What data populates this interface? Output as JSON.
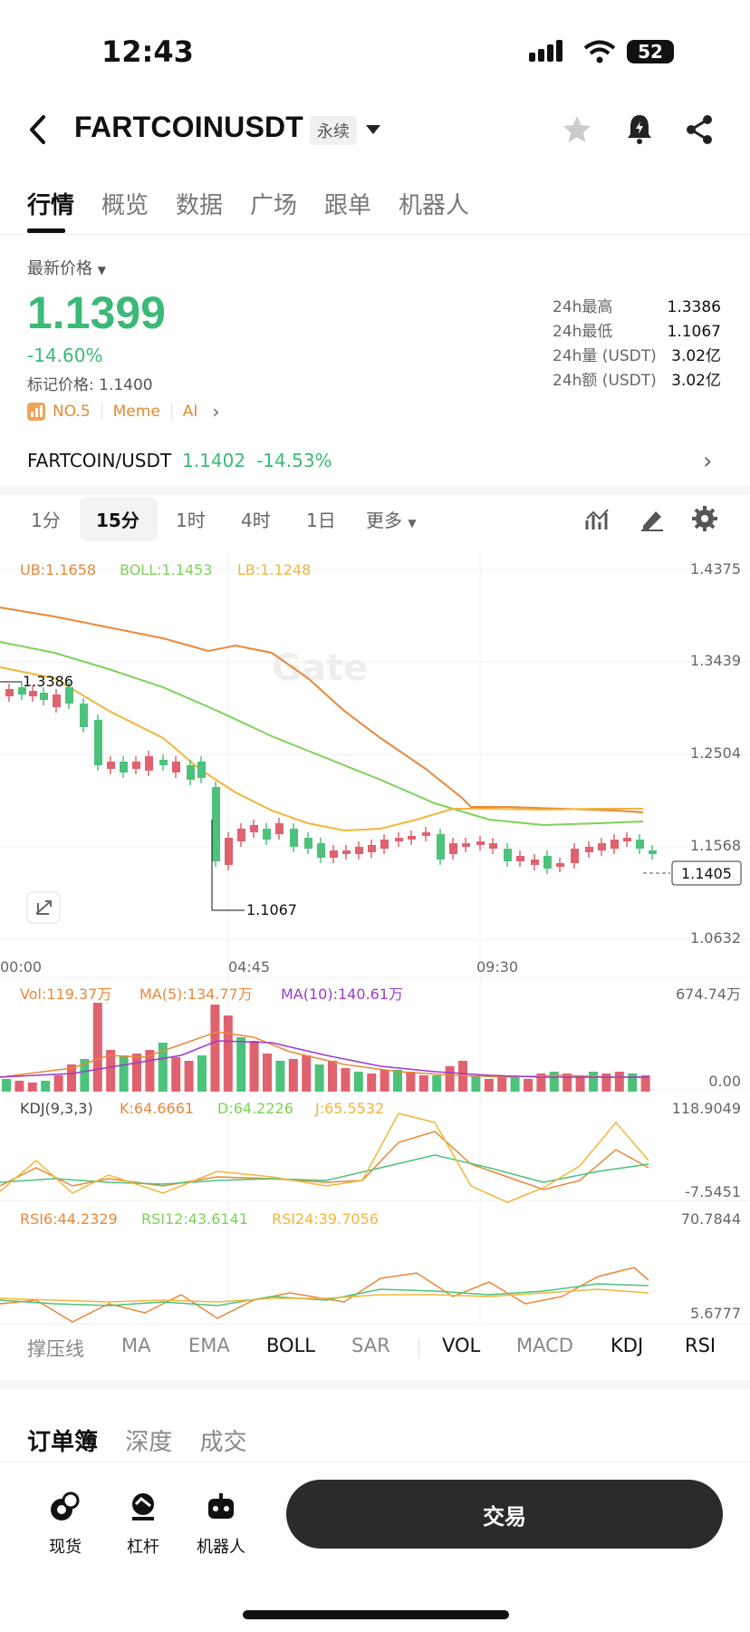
{
  "status": {
    "time": "12:43",
    "battery": "52"
  },
  "header": {
    "symbol": "FARTCOINUSDT",
    "type_tag": "永续"
  },
  "tabs": [
    "行情",
    "概览",
    "数据",
    "广场",
    "跟单",
    "机器人"
  ],
  "price": {
    "label": "最新价格",
    "last": "1.1399",
    "change": "-14.60%",
    "mark": "标记价格: 1.1400",
    "rank": "NO.5",
    "tags": [
      "Meme",
      "AI"
    ]
  },
  "stats": [
    {
      "k": "24h最高",
      "v": "1.3386"
    },
    {
      "k": "24h最低",
      "v": "1.1067"
    },
    {
      "k": "24h量 (USDT)",
      "v": "3.02亿"
    },
    {
      "k": "24h额 (USDT)",
      "v": "3.02亿"
    }
  ],
  "pair": {
    "name": "FARTCOIN/USDT",
    "price": "1.1402",
    "change": "-14.53%"
  },
  "intervals": {
    "items": [
      "1分",
      "15分",
      "1时",
      "4时",
      "1日"
    ],
    "more": "更多",
    "active": "15分"
  },
  "chart": {
    "boll_legend": {
      "ub": "UB:1.1658",
      "boll": "BOLL:1.1453",
      "lb": "LB:1.1248"
    },
    "price_axis": [
      "1.4375",
      "1.3439",
      "1.2504",
      "1.1568",
      "1.0632"
    ],
    "high_label": "1.3386",
    "low_label": "1.1067",
    "current_label": "1.1405",
    "time_axis": [
      "00:00",
      "04:45",
      "09:30"
    ],
    "watermark": "Gate",
    "vol_legend": {
      "vol": "Vol:119.37万",
      "ma5": "MA(5):134.77万",
      "ma10": "MA(10):140.61万"
    },
    "vol_axis": [
      "674.74万",
      "0.00"
    ],
    "kdj_legend": {
      "name": "KDJ(9,3,3)",
      "k": "K:64.6661",
      "d": "D:64.2226",
      "j": "J:65.5532"
    },
    "kdj_axis": [
      "118.9049",
      "-7.5451"
    ],
    "rsi_legend": {
      "r6": "RSI6:44.2329",
      "r12": "RSI12:43.6141",
      "r24": "RSI24:39.7056"
    },
    "rsi_axis": [
      "70.7844",
      "5.6777"
    ],
    "colors": {
      "up": "#e0626f",
      "down": "#4cc27a",
      "ub": "#e9883a",
      "boll": "#7ed15c",
      "lb": "#f0b63c",
      "ma10": "#9b3bc8"
    }
  },
  "indicators": [
    "撑压线",
    "MA",
    "EMA",
    "BOLL",
    "SAR",
    "VOL",
    "MACD",
    "KDJ",
    "RSI"
  ],
  "active_indicators": [
    "BOLL",
    "VOL",
    "KDJ",
    "RSI"
  ],
  "order_tabs": [
    "订单簿",
    "深度",
    "成交"
  ],
  "bottom_nav": [
    {
      "label": "现货",
      "icon": "spot-icon"
    },
    {
      "label": "杠杆",
      "icon": "margin-icon"
    },
    {
      "label": "机器人",
      "icon": "robot-icon"
    }
  ],
  "trade_button": "交易"
}
